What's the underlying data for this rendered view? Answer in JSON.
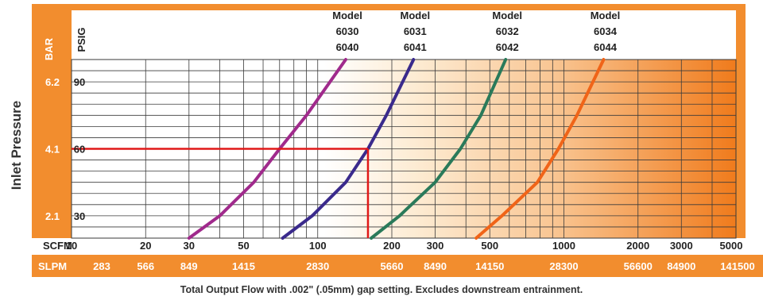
{
  "chart_data": {
    "type": "line",
    "ylabel": "Inlet Pressure",
    "units": {
      "bar": "BAR",
      "psig": "PSIG",
      "scfm": "SCFM",
      "slpm": "SLPM"
    },
    "x_scale": "log",
    "xlim_scfm": [
      10,
      5000
    ],
    "ylim_psig": [
      20,
      100
    ],
    "grid": true,
    "x_ticks_scfm": [
      10,
      20,
      30,
      50,
      100,
      200,
      300,
      500,
      1000,
      2000,
      3000,
      5000
    ],
    "x_tick_labels_scfm": [
      "10",
      "20",
      "30",
      "50",
      "100",
      "200",
      "300",
      "500",
      "1000",
      "2000",
      "3000",
      "5000"
    ],
    "x_tick_labels_slpm": [
      "283",
      "566",
      "849",
      "1415",
      "2830",
      "5660",
      "8490",
      "14150",
      "28300",
      "56600",
      "84900",
      "141500"
    ],
    "y_ticks_psig": [
      30,
      60,
      90
    ],
    "y_tick_labels_psig": [
      "30",
      "60",
      "90"
    ],
    "y_tick_labels_bar": [
      "2.1",
      "4.1",
      "6.2"
    ],
    "series": [
      {
        "name_line1": "Model",
        "name_line2": "6030",
        "name_line3": "6040",
        "color": "#a02a8c",
        "points": [
          [
            30,
            20
          ],
          [
            40,
            30
          ],
          [
            55,
            45
          ],
          [
            70,
            60
          ],
          [
            90,
            75
          ],
          [
            130,
            100
          ]
        ]
      },
      {
        "name_line1": "Model",
        "name_line2": "6031",
        "name_line3": "6041",
        "color": "#3a2a8c",
        "points": [
          [
            72,
            20
          ],
          [
            95,
            30
          ],
          [
            130,
            45
          ],
          [
            160,
            60
          ],
          [
            190,
            75
          ],
          [
            245,
            100
          ]
        ]
      },
      {
        "name_line1": "Model",
        "name_line2": "6032",
        "name_line3": "6042",
        "color": "#2a7a5a",
        "points": [
          [
            165,
            20
          ],
          [
            215,
            30
          ],
          [
            300,
            45
          ],
          [
            380,
            60
          ],
          [
            460,
            75
          ],
          [
            580,
            100
          ]
        ]
      },
      {
        "name_line1": "Model",
        "name_line2": "6034",
        "name_line3": "6044",
        "color": "#f06418",
        "points": [
          [
            440,
            20
          ],
          [
            560,
            30
          ],
          [
            780,
            45
          ],
          [
            950,
            60
          ],
          [
            1130,
            75
          ],
          [
            1450,
            100
          ]
        ]
      }
    ],
    "annotation": {
      "type": "crosshair",
      "x_scfm": 160,
      "y_psig": 60,
      "color": "#e01818"
    },
    "caption": "Total Output Flow with .002\" (.05mm) gap setting. Excludes downstream entrainment."
  },
  "colors": {
    "band": "#f28d2e",
    "grid": "#3a3a3a",
    "gradient_end": "#f07b1c"
  }
}
